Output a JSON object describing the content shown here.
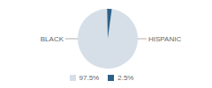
{
  "chart_data": {
    "type": "pie",
    "categories": [
      "BLACK",
      "HISPANIC"
    ],
    "values": [
      97.5,
      2.5
    ],
    "value_labels": [
      "97.5%",
      "2.5%"
    ],
    "colors": [
      "#d6dfe8",
      "#2e5f87"
    ],
    "legend": "bottom"
  }
}
